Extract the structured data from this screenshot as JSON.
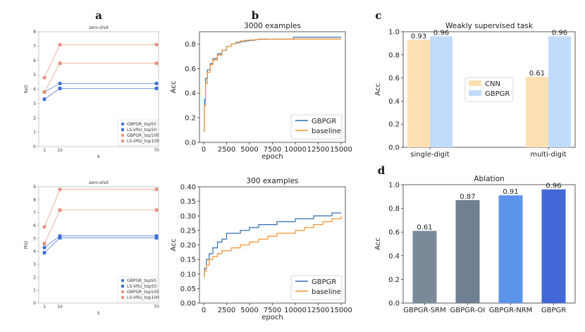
{
  "panel_letters": [
    "a",
    "b",
    "c",
    "d"
  ],
  "chart_data": [
    {
      "id": "a_top",
      "type": "line",
      "title": "zero-shot",
      "xlabel": "k",
      "ylabel": "ReD",
      "x": [
        1,
        10,
        70
      ],
      "x_tick_labels": [
        "1",
        "10",
        "70"
      ],
      "ylim": [
        0,
        8
      ],
      "yticks": [
        0,
        1,
        2,
        3,
        4,
        5,
        6,
        7,
        8
      ],
      "series": [
        {
          "name": "GBPGR_top50",
          "values": [
            3.8,
            4.4,
            4.4
          ],
          "color": "#3b6fd4",
          "marker": "circle"
        },
        {
          "name": "LS-VRU_top50",
          "values": [
            3.3,
            4.05,
            4.05
          ],
          "color": "#3b6fd4",
          "marker": "square"
        },
        {
          "name": "GBPGR_top100",
          "values": [
            4.8,
            7.1,
            7.1
          ],
          "color": "#e8917a",
          "marker": "circle"
        },
        {
          "name": "LS-VRU_top100",
          "values": [
            3.8,
            5.8,
            5.8
          ],
          "color": "#e8917a",
          "marker": "square"
        }
      ]
    },
    {
      "id": "a_bottom",
      "type": "line",
      "title": "zero-shot",
      "xlabel": "k",
      "ylabel": "PhD",
      "x": [
        1,
        10,
        70
      ],
      "x_tick_labels": [
        "1",
        "10",
        "70"
      ],
      "ylim": [
        0,
        9
      ],
      "yticks": [
        0,
        1,
        2,
        3,
        4,
        5,
        6,
        7,
        8,
        9
      ],
      "series": [
        {
          "name": "GBPGR_top50",
          "values": [
            4.3,
            5.2,
            5.2
          ],
          "color": "#3b6fd4",
          "marker": "circle"
        },
        {
          "name": "LS-VRU_top50",
          "values": [
            3.9,
            5.05,
            5.05
          ],
          "color": "#3b6fd4",
          "marker": "square"
        },
        {
          "name": "GBPGR_top100",
          "values": [
            5.9,
            8.8,
            8.8
          ],
          "color": "#e8917a",
          "marker": "circle"
        },
        {
          "name": "LS-VRU_top100",
          "values": [
            4.6,
            7.2,
            7.2
          ],
          "color": "#e8917a",
          "marker": "square"
        }
      ]
    },
    {
      "id": "b_top",
      "type": "line",
      "title": "3000 examples",
      "xlabel": "epoch",
      "ylabel": "Acc",
      "xlim": [
        0,
        15000
      ],
      "xticks": [
        0,
        2500,
        5000,
        7500,
        10000,
        12500,
        15000
      ],
      "ylim": [
        0.0,
        0.9
      ],
      "yticks": [
        0.0,
        0.2,
        0.4,
        0.6,
        0.8
      ],
      "series": [
        {
          "name": "GBPGR",
          "color": "#2f6fae",
          "x": [
            0,
            80,
            200,
            400,
            700,
            1000,
            1500,
            2000,
            2500,
            3000,
            3500,
            4000,
            4500,
            5000,
            5600,
            6000,
            7000,
            8000,
            9000,
            9800,
            10500,
            12000,
            13000,
            14000,
            15000
          ],
          "y": [
            0.1,
            0.35,
            0.52,
            0.59,
            0.64,
            0.68,
            0.72,
            0.75,
            0.78,
            0.8,
            0.81,
            0.82,
            0.825,
            0.83,
            0.835,
            0.84,
            0.84,
            0.84,
            0.84,
            0.855,
            0.855,
            0.855,
            0.855,
            0.855,
            0.855
          ]
        },
        {
          "name": "baseline",
          "color": "#f2922f",
          "x": [
            0,
            80,
            200,
            400,
            700,
            1000,
            1500,
            2000,
            2500,
            3000,
            3500,
            4000,
            4500,
            5000,
            5600,
            6000,
            7000,
            8000,
            9000,
            10000,
            11000,
            12000,
            13000,
            14000,
            15000
          ],
          "y": [
            0.09,
            0.3,
            0.48,
            0.57,
            0.63,
            0.67,
            0.71,
            0.75,
            0.78,
            0.8,
            0.815,
            0.825,
            0.83,
            0.833,
            0.835,
            0.838,
            0.84,
            0.84,
            0.84,
            0.84,
            0.84,
            0.84,
            0.84,
            0.84,
            0.84
          ]
        }
      ],
      "legend": "lower right"
    },
    {
      "id": "b_bottom",
      "type": "line",
      "title": "300 examples",
      "xlabel": "epoch",
      "ylabel": "Acc",
      "xlim": [
        0,
        15000
      ],
      "xticks": [
        0,
        2500,
        5000,
        7500,
        10000,
        12500,
        15000
      ],
      "ylim": [
        0.0,
        0.4
      ],
      "yticks": [
        0.0,
        0.05,
        0.1,
        0.15,
        0.2,
        0.25,
        0.3,
        0.35,
        0.4
      ],
      "series": [
        {
          "name": "GBPGR",
          "color": "#2f6fae",
          "x": [
            0,
            100,
            300,
            600,
            1000,
            1500,
            2000,
            2500,
            3000,
            4000,
            5000,
            6000,
            7000,
            8000,
            9000,
            10000,
            11000,
            12000,
            13000,
            14000,
            15000
          ],
          "y": [
            0.1,
            0.12,
            0.15,
            0.17,
            0.19,
            0.21,
            0.22,
            0.24,
            0.24,
            0.25,
            0.26,
            0.27,
            0.27,
            0.28,
            0.28,
            0.29,
            0.29,
            0.3,
            0.3,
            0.31,
            0.31
          ]
        },
        {
          "name": "baseline",
          "color": "#f2922f",
          "x": [
            0,
            100,
            300,
            600,
            1000,
            1500,
            2000,
            2500,
            3000,
            4000,
            5000,
            6000,
            7000,
            8000,
            9000,
            10000,
            11000,
            12000,
            13000,
            14000,
            15000
          ],
          "y": [
            0.09,
            0.11,
            0.13,
            0.15,
            0.16,
            0.17,
            0.18,
            0.18,
            0.19,
            0.2,
            0.21,
            0.22,
            0.23,
            0.24,
            0.24,
            0.25,
            0.26,
            0.27,
            0.28,
            0.29,
            0.3
          ]
        }
      ],
      "legend": "lower right"
    },
    {
      "id": "c",
      "type": "bar",
      "title": "Weakly supervised task",
      "xlabel": "",
      "ylabel": "Acc",
      "categories": [
        "single-digit",
        "multi-digit"
      ],
      "ylim": [
        0.0,
        1.0
      ],
      "yticks": [
        0.0,
        0.2,
        0.4,
        0.6,
        0.8,
        1.0
      ],
      "series": [
        {
          "name": "CNN",
          "values": [
            0.93,
            0.61
          ],
          "labels": [
            "0.93",
            "0.61"
          ],
          "color": "#fde0b2"
        },
        {
          "name": "GBPGR",
          "values": [
            0.96,
            0.96
          ],
          "labels": [
            "0.96",
            "0.96"
          ],
          "color": "#c0dbfb"
        }
      ],
      "legend": "center"
    },
    {
      "id": "d",
      "type": "bar",
      "title": "Ablation",
      "xlabel": "",
      "ylabel": "Acc",
      "categories": [
        "GBPGR-SRM",
        "GBPGR-OI",
        "GBPGR-NRM",
        "GBPGR"
      ],
      "values": [
        0.61,
        0.87,
        0.91,
        0.96
      ],
      "labels": [
        "0.61",
        "0.87",
        "0.91",
        "0.96"
      ],
      "colors": [
        "#7a8a99",
        "#6e8091",
        "#5b93e8",
        "#4267d6"
      ],
      "ylim": [
        0.0,
        1.0
      ],
      "yticks": [
        0.0,
        0.2,
        0.4,
        0.6,
        0.8,
        1.0
      ]
    }
  ]
}
